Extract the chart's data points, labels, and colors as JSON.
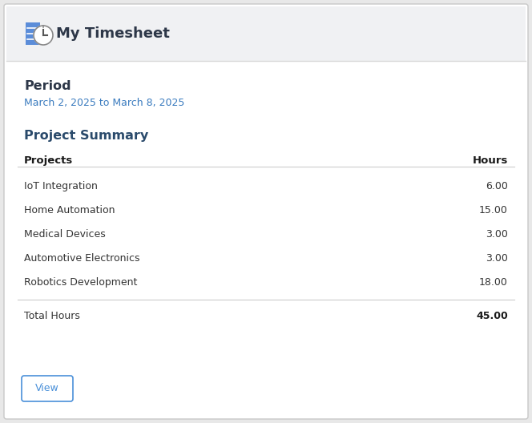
{
  "title": "My Timesheet",
  "period_label": "Period",
  "period_value": "March 2, 2025 to March 8, 2025",
  "section_title": "Project Summary",
  "col_headers": [
    "Projects",
    "Hours"
  ],
  "projects": [
    "IoT Integration",
    "Home Automation",
    "Medical Devices",
    "Automotive Electronics",
    "Robotics Development"
  ],
  "hours": [
    "6.00",
    "15.00",
    "3.00",
    "3.00",
    "18.00"
  ],
  "total_label": "Total Hours",
  "total_value": "45.00",
  "button_label": "View",
  "bg_color": "#e8e8e8",
  "card_color": "#ffffff",
  "header_bg": "#f0f1f3",
  "header_text_color": "#2d3748",
  "period_color": "#3a7bbf",
  "period_label_color": "#2d3748",
  "section_title_color": "#2a4a6b",
  "col_header_color": "#1a1a1a",
  "row_text_color": "#333333",
  "total_label_color": "#333333",
  "total_value_color": "#1a1a1a",
  "divider_color": "#cccccc",
  "header_divider_color": "#d8d8d8",
  "button_border_color": "#4a90d9",
  "button_text_color": "#4a90d9"
}
